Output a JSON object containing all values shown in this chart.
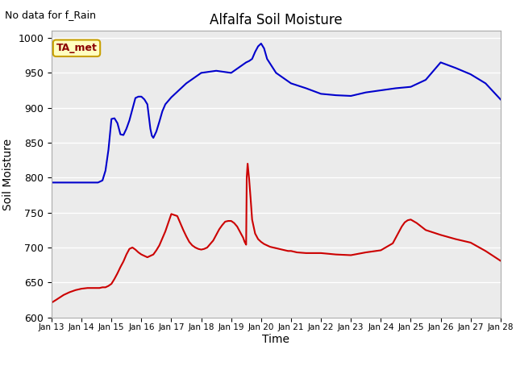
{
  "title": "Alfalfa Soil Moisture",
  "xlabel": "Time",
  "ylabel": "Soil Moisture",
  "top_left_text": "No data for f_Rain",
  "annotation_text": "TA_met",
  "ylim": [
    600,
    1010
  ],
  "yticks": [
    600,
    650,
    700,
    750,
    800,
    850,
    900,
    950,
    1000
  ],
  "xlim": [
    0,
    15
  ],
  "xtick_labels": [
    "Jan 13",
    "Jan 14",
    "Jan 15",
    "Jan 16",
    "Jan 17",
    "Jan 18",
    "Jan 19",
    "Jan 20",
    "Jan 21",
    "Jan 22",
    "Jan 23",
    "Jan 24",
    "Jan 25",
    "Jan 26",
    "Jan 27",
    "Jan 28"
  ],
  "bg_color": "#ebebeb",
  "fig_color": "#ffffff",
  "line1_color": "#cc0000",
  "line2_color": "#0000cc",
  "theta10_x": [
    0.0,
    0.15,
    0.4,
    0.6,
    0.8,
    1.0,
    1.2,
    1.4,
    1.6,
    1.7,
    1.75,
    1.8,
    1.85,
    1.9,
    2.0,
    2.1,
    2.2,
    2.3,
    2.4,
    2.5,
    2.6,
    2.7,
    2.8,
    2.9,
    3.0,
    3.1,
    3.2,
    3.4,
    3.5,
    3.6,
    3.7,
    3.8,
    4.0,
    4.2,
    4.3,
    4.4,
    4.5,
    4.6,
    4.7,
    4.8,
    4.9,
    5.0,
    5.1,
    5.2,
    5.4,
    5.5,
    5.6,
    5.7,
    5.8,
    5.9,
    6.0,
    6.1,
    6.2,
    6.3,
    6.4,
    6.45,
    6.5,
    6.52,
    6.55,
    6.6,
    6.65,
    6.7,
    6.8,
    6.9,
    7.0,
    7.1,
    7.2,
    7.3,
    7.4,
    7.5,
    7.6,
    7.7,
    7.8,
    7.9,
    8.0,
    8.1,
    8.2,
    8.5,
    9.0,
    9.5,
    10.0,
    10.5,
    11.0,
    11.2,
    11.4,
    11.5,
    11.6,
    11.7,
    11.8,
    11.9,
    12.0,
    12.2,
    12.5,
    13.0,
    13.5,
    14.0,
    14.5,
    15.0
  ],
  "theta10_y": [
    621,
    625,
    632,
    636,
    639,
    641,
    642,
    642,
    642,
    643,
    643,
    643,
    644,
    645,
    648,
    655,
    663,
    672,
    680,
    690,
    698,
    700,
    697,
    693,
    690,
    688,
    686,
    690,
    696,
    703,
    713,
    723,
    748,
    745,
    735,
    725,
    716,
    708,
    703,
    700,
    698,
    697,
    698,
    700,
    710,
    718,
    726,
    732,
    737,
    738,
    738,
    735,
    730,
    722,
    714,
    708,
    704,
    800,
    820,
    798,
    770,
    740,
    720,
    712,
    708,
    705,
    703,
    701,
    700,
    699,
    698,
    697,
    696,
    695,
    695,
    694,
    693,
    692,
    692,
    690,
    689,
    693,
    696,
    701,
    706,
    714,
    722,
    730,
    736,
    739,
    740,
    735,
    725,
    718,
    712,
    707,
    695,
    681
  ],
  "theta20_x": [
    0.0,
    0.2,
    0.5,
    0.8,
    1.0,
    1.2,
    1.4,
    1.55,
    1.6,
    1.7,
    1.8,
    1.9,
    2.0,
    2.1,
    2.2,
    2.3,
    2.4,
    2.5,
    2.6,
    2.7,
    2.8,
    2.9,
    3.0,
    3.1,
    3.2,
    3.3,
    3.35,
    3.4,
    3.5,
    3.6,
    3.7,
    3.8,
    3.9,
    4.0,
    4.5,
    5.0,
    5.5,
    6.0,
    6.5,
    6.6,
    6.7,
    6.8,
    6.9,
    7.0,
    7.1,
    7.2,
    7.5,
    8.0,
    8.5,
    9.0,
    9.5,
    10.0,
    10.5,
    11.0,
    11.5,
    12.0,
    12.5,
    13.0,
    13.5,
    14.0,
    14.5,
    15.0
  ],
  "theta20_y": [
    793,
    793,
    793,
    793,
    793,
    793,
    793,
    793,
    794,
    796,
    810,
    840,
    884,
    885,
    878,
    862,
    861,
    870,
    882,
    898,
    914,
    916,
    916,
    912,
    905,
    870,
    860,
    857,
    866,
    880,
    895,
    905,
    910,
    915,
    935,
    950,
    953,
    950,
    965,
    967,
    970,
    980,
    988,
    992,
    985,
    970,
    950,
    935,
    928,
    920,
    918,
    917,
    922,
    925,
    928,
    930,
    940,
    965,
    957,
    948,
    935,
    912
  ]
}
